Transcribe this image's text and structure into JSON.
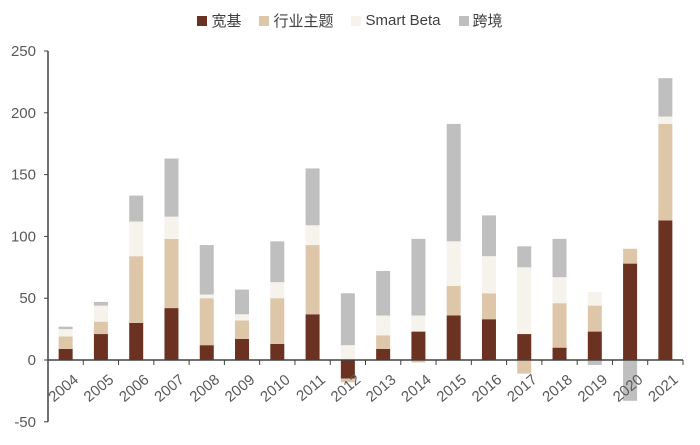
{
  "legend": [
    {
      "label": "宽基",
      "color": "#6B3222"
    },
    {
      "label": "行业主题",
      "color": "#DEC7A8"
    },
    {
      "label": "Smart Beta",
      "color": "#F6F2EC"
    },
    {
      "label": "跨境",
      "color": "#BFBFBF"
    }
  ],
  "chart_data": {
    "type": "bar",
    "stacked": true,
    "title": "",
    "xlabel": "",
    "ylabel": "",
    "ylim": [
      -50,
      250
    ],
    "yticks": [
      -50,
      0,
      50,
      100,
      150,
      200,
      250
    ],
    "grid": false,
    "legend_position": "top",
    "categories": [
      "2004",
      "2005",
      "2006",
      "2007",
      "2008",
      "2009",
      "2010",
      "2011",
      "2012",
      "2013",
      "2014",
      "2015",
      "2016",
      "2017",
      "2018",
      "2019",
      "2020",
      "2021"
    ],
    "series": [
      {
        "name": "宽基",
        "color": "#6B3222",
        "values": [
          9,
          21,
          30,
          42,
          12,
          17,
          13,
          37,
          -15,
          9,
          23,
          36,
          33,
          21,
          10,
          23,
          78,
          113
        ]
      },
      {
        "name": "行业主题",
        "color": "#DEC7A8",
        "values": [
          10,
          10,
          54,
          56,
          38,
          15,
          37,
          56,
          -3,
          11,
          -2,
          24,
          21,
          -11,
          36,
          21,
          12,
          78
        ]
      },
      {
        "name": "Smart Beta",
        "color": "#F6F2EC",
        "values": [
          6,
          13,
          28,
          18,
          3,
          5,
          13,
          16,
          12,
          16,
          13,
          36,
          30,
          54,
          21,
          11,
          0,
          6
        ]
      },
      {
        "name": "跨境",
        "color": "#BFBFBF",
        "values": [
          2,
          3,
          21,
          47,
          40,
          20,
          33,
          46,
          42,
          36,
          62,
          95,
          33,
          17,
          31,
          -4,
          -33,
          31
        ]
      }
    ]
  }
}
